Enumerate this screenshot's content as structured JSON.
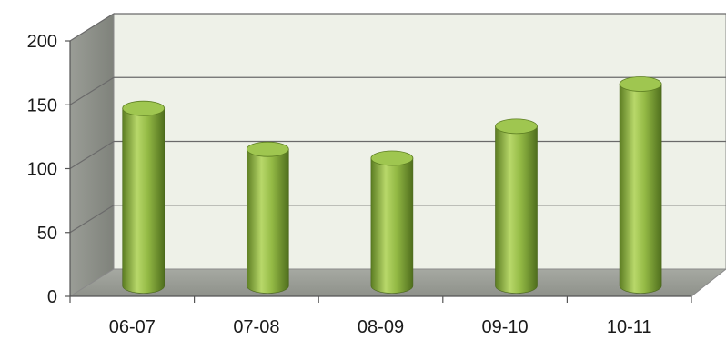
{
  "chart_data": {
    "type": "bar",
    "style": "3d-cylinder",
    "categories": [
      "06-07",
      "07-08",
      "08-09",
      "09-10",
      "10-11"
    ],
    "values": [
      139,
      107,
      100,
      125,
      158
    ],
    "yticks": [
      0,
      50,
      100,
      150,
      200
    ],
    "ylim": [
      0,
      200
    ],
    "grid": true,
    "title": "",
    "xlabel": "",
    "ylabel": "",
    "colors": {
      "bar_light": "#b8d86a",
      "bar_mid": "#8cb23c",
      "bar_dark": "#4f6e1d",
      "wall": "#eef1e8",
      "side_wall": "#8c8f88",
      "floor": "#9a9d96",
      "gridline": "#6a6a6a"
    }
  }
}
